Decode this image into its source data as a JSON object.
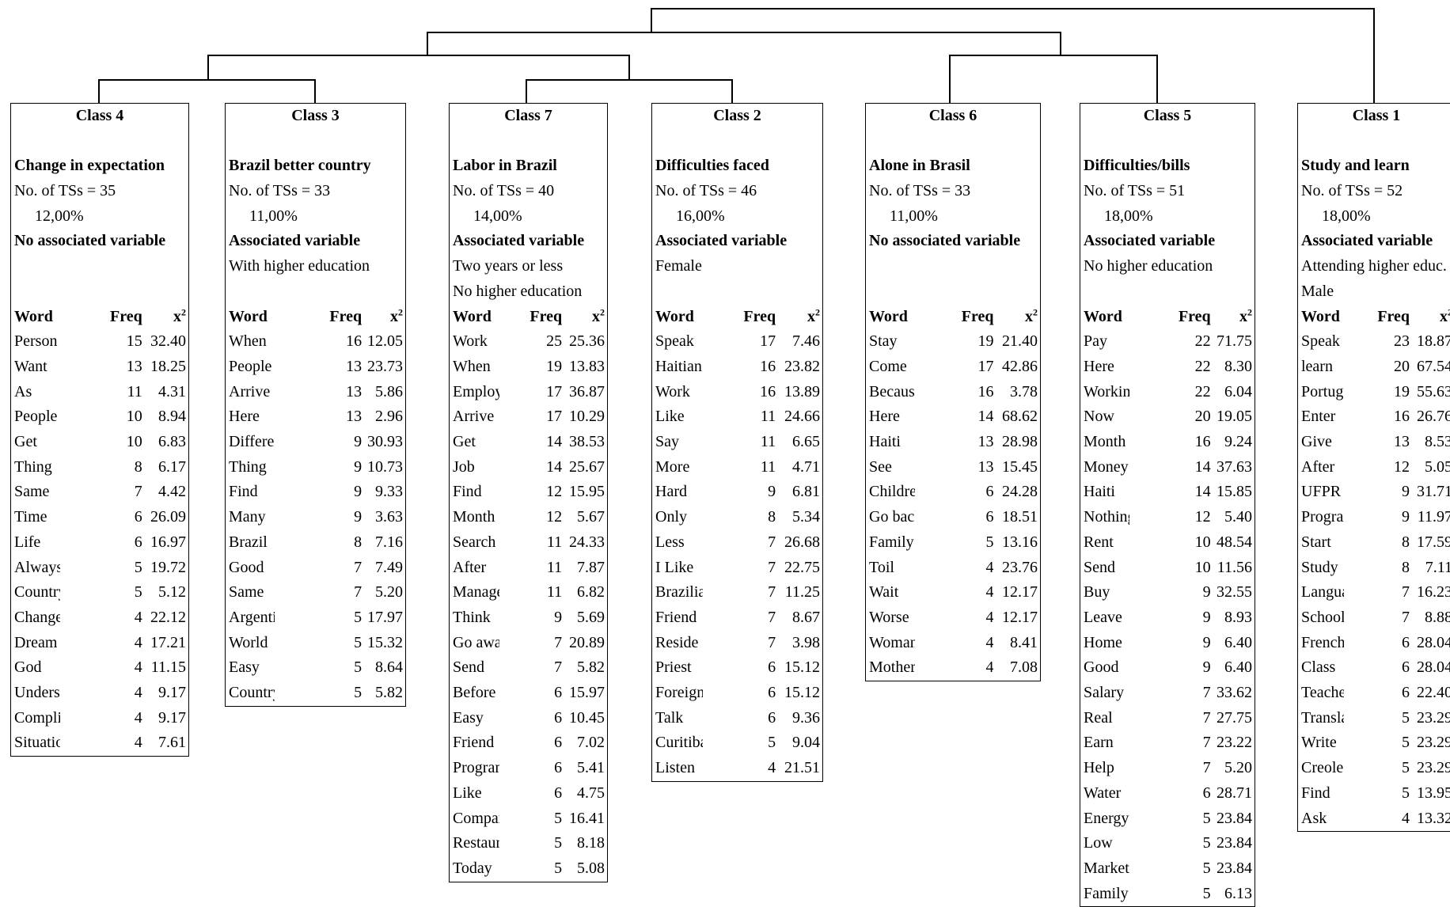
{
  "headers": {
    "word": "Word",
    "freq": "Freq",
    "chi": "x",
    "chi_sup": "2"
  },
  "classes": [
    {
      "id": "4",
      "title": "Class 4",
      "subtitle": "Change in expectation",
      "tss": "No. of TSs = 35",
      "pct": "12,00%",
      "assoc_label": "No associated variable",
      "assoc_values": [],
      "rows": [
        [
          "Person",
          "15",
          "32.40"
        ],
        [
          "Want",
          "13",
          "18.25"
        ],
        [
          "As",
          "11",
          "4.31"
        ],
        [
          "People",
          "10",
          "8.94"
        ],
        [
          "Get",
          "10",
          "6.83"
        ],
        [
          "Thing",
          "8",
          "6.17"
        ],
        [
          "Same",
          "7",
          "4.42"
        ],
        [
          "Time",
          "6",
          "26.09"
        ],
        [
          "Life",
          "6",
          "16.97"
        ],
        [
          "Always",
          "5",
          "19.72"
        ],
        [
          "Country",
          "5",
          "5.12"
        ],
        [
          "Change",
          "4",
          "22.12"
        ],
        [
          "Dream",
          "4",
          "17.21"
        ],
        [
          "God",
          "4",
          "11.15"
        ],
        [
          "Understand",
          "4",
          "9.17"
        ],
        [
          "Complicated",
          "4",
          "9.17"
        ],
        [
          "Situation",
          "4",
          "7.61"
        ]
      ]
    },
    {
      "id": "3",
      "title": "Class 3",
      "subtitle": "Brazil better country",
      "tss": "No. of TSs = 33",
      "pct": "11,00%",
      "assoc_label": "Associated variable",
      "assoc_values": [
        "With higher education"
      ],
      "rows": [
        [
          "When",
          "16",
          "12.05"
        ],
        [
          "People",
          "13",
          "23.73"
        ],
        [
          "Arrive",
          "13",
          "5.86"
        ],
        [
          "Here",
          "13",
          "2.96"
        ],
        [
          "Different",
          "9",
          "30.93"
        ],
        [
          "Thing",
          "9",
          "10.73"
        ],
        [
          "Find",
          "9",
          "9.33"
        ],
        [
          "Many",
          "9",
          "3.63"
        ],
        [
          "Brazil",
          "8",
          "7.16"
        ],
        [
          "Good",
          "7",
          "7.49"
        ],
        [
          "Same",
          "7",
          "5.20"
        ],
        [
          "Argentinian",
          "5",
          "17.97"
        ],
        [
          "World",
          "5",
          "15.32"
        ],
        [
          "Easy",
          "5",
          "8.64"
        ],
        [
          "Country",
          "5",
          "5.82"
        ]
      ]
    },
    {
      "id": "7",
      "title": "Class 7",
      "subtitle": "Labor in Brazil",
      "tss": "No. of TSs = 40",
      "pct": "14,00%",
      "assoc_label": "Associated variable",
      "assoc_values": [
        "Two years or less",
        "No higher education"
      ],
      "rows": [
        [
          "Work",
          "25",
          "25.36"
        ],
        [
          "When",
          "19",
          "13.83"
        ],
        [
          "Employme",
          "17",
          "36.87"
        ],
        [
          "Arrive",
          "17",
          "10.29"
        ],
        [
          "Get",
          "14",
          "38.53"
        ],
        [
          "Job",
          "14",
          "25.67"
        ],
        [
          "Find",
          "12",
          "15.95"
        ],
        [
          "Month",
          "12",
          "5.67"
        ],
        [
          "Search",
          "11",
          "24.33"
        ],
        [
          "After",
          "11",
          "7.87"
        ],
        [
          "Manage to",
          "11",
          "6.82"
        ],
        [
          "Think",
          "9",
          "5.69"
        ],
        [
          "Go away",
          "7",
          "20.89"
        ],
        [
          "Send",
          "7",
          "5.82"
        ],
        [
          "Before",
          "6",
          "15.97"
        ],
        [
          "Easy",
          "6",
          "10.45"
        ],
        [
          "Friend",
          "6",
          "7.02"
        ],
        [
          "Program",
          "6",
          "5.41"
        ],
        [
          "Like",
          "6",
          "4.75"
        ],
        [
          "Company",
          "5",
          "16.41"
        ],
        [
          "Restaurant",
          "5",
          "8.18"
        ],
        [
          "Today",
          "5",
          "5.08"
        ]
      ]
    },
    {
      "id": "2",
      "title": "Class 2",
      "subtitle": "Difficulties faced",
      "tss": "No. of TSs = 46",
      "pct": "16,00%",
      "assoc_label": "Associated variable",
      "assoc_values": [
        "Female"
      ],
      "rows": [
        [
          "Speak",
          "17",
          "7.46"
        ],
        [
          "Haitian",
          "16",
          "23.82"
        ],
        [
          "Work",
          "16",
          "13.89"
        ],
        [
          "Like",
          "11",
          "24.66"
        ],
        [
          "Say",
          "11",
          "6.65"
        ],
        [
          "More",
          "11",
          "4.71"
        ],
        [
          "Hard",
          "9",
          "6.81"
        ],
        [
          "Only",
          "8",
          "5.34"
        ],
        [
          "Less",
          "7",
          "26.68"
        ],
        [
          "I Like",
          "7",
          "22.75"
        ],
        [
          "Brazilian",
          "7",
          "11.25"
        ],
        [
          "Friend",
          "7",
          "8.67"
        ],
        [
          "Reside",
          "7",
          "3.98"
        ],
        [
          "Priest",
          "6",
          "15.12"
        ],
        [
          "Foreigner",
          "6",
          "15.12"
        ],
        [
          "Talk",
          "6",
          "9.36"
        ],
        [
          "Curitiba",
          "5",
          "9.04"
        ],
        [
          "Listen",
          "4",
          "21.51"
        ]
      ]
    },
    {
      "id": "6",
      "title": "Class 6",
      "subtitle": "Alone in Brasil",
      "tss": "No. of TSs = 33",
      "pct": "11,00%",
      "assoc_label": "No associated variable",
      "assoc_values": [],
      "rows": [
        [
          "Stay",
          "19",
          "21.40"
        ],
        [
          "Come",
          "17",
          "42.86"
        ],
        [
          "Because",
          "16",
          "3.78"
        ],
        [
          "Here",
          "14",
          "68.62"
        ],
        [
          "Haiti",
          "13",
          "28.98"
        ],
        [
          "See",
          "13",
          "15.45"
        ],
        [
          "Children",
          "6",
          "24.28"
        ],
        [
          "Go back",
          "6",
          "18.51"
        ],
        [
          "Family",
          "5",
          "13.16"
        ],
        [
          "Toil",
          "4",
          "23.76"
        ],
        [
          "Wait",
          "4",
          "12.17"
        ],
        [
          "Worse",
          "4",
          "12.17"
        ],
        [
          "Woman",
          "4",
          "8.41"
        ],
        [
          "Mother",
          "4",
          "7.08"
        ]
      ]
    },
    {
      "id": "5",
      "title": "Class 5",
      "subtitle": "Difficulties/bills",
      "tss": "No. of TSs = 51",
      "pct": "18,00%",
      "assoc_label": "Associated variable",
      "assoc_values": [
        "No higher education"
      ],
      "rows": [
        [
          "Pay",
          "22",
          "71.75"
        ],
        [
          "Here",
          "22",
          "8.30"
        ],
        [
          "Working",
          "22",
          "6.04"
        ],
        [
          "Now",
          "20",
          "19.05"
        ],
        [
          "Month",
          "16",
          "9.24"
        ],
        [
          "Money",
          "14",
          "37.63"
        ],
        [
          "Haiti",
          "14",
          "15.85"
        ],
        [
          "Nothing",
          "12",
          "5.40"
        ],
        [
          "Rent",
          "10",
          "48.54"
        ],
        [
          "Send",
          "10",
          "11.56"
        ],
        [
          "Buy",
          "9",
          "32.55"
        ],
        [
          "Leave",
          "9",
          "8.93"
        ],
        [
          "Home",
          "9",
          "6.40"
        ],
        [
          "Good",
          "9",
          "6.40"
        ],
        [
          "Salary",
          "7",
          "33.62"
        ],
        [
          "Real",
          "7",
          "27.75"
        ],
        [
          "Earn",
          "7",
          "23.22"
        ],
        [
          "Help",
          "7",
          "5.20"
        ],
        [
          "Water",
          "6",
          "28.71"
        ],
        [
          "Energy",
          "5",
          "23.84"
        ],
        [
          "Low",
          "5",
          "23.84"
        ],
        [
          "Market",
          "5",
          "23.84"
        ],
        [
          "Family",
          "5",
          "6.13"
        ]
      ]
    },
    {
      "id": "1",
      "title": "Class 1",
      "subtitle": "Study and learn",
      "tss": "No. of TSs = 52",
      "pct": "18,00%",
      "assoc_label": "Associated variable",
      "assoc_values": [
        "Attending higher educ.",
        "Male"
      ],
      "rows": [
        [
          "Speak",
          "23",
          "18.87"
        ],
        [
          "learn",
          "20",
          "67.54"
        ],
        [
          "Portuguese",
          "19",
          "55.63"
        ],
        [
          "Enter",
          "16",
          "26.76"
        ],
        [
          "Give",
          "13",
          "8.53"
        ],
        [
          "After",
          "12",
          "5.05"
        ],
        [
          "UFPR",
          "9",
          "31.71"
        ],
        [
          "Program",
          "9",
          "11.97"
        ],
        [
          "Start",
          "8",
          "17.59"
        ],
        [
          "Study",
          "8",
          "7.11"
        ],
        [
          "Language",
          "7",
          "16.23"
        ],
        [
          "School",
          "7",
          "8.88"
        ],
        [
          "French",
          "6",
          "28.04"
        ],
        [
          "Class",
          "6",
          "28.04"
        ],
        [
          "Teacher",
          "6",
          "22.40"
        ],
        [
          "Translate",
          "5",
          "23.29"
        ],
        [
          "Write",
          "5",
          "23.29"
        ],
        [
          "Creole",
          "5",
          "23.29"
        ],
        [
          "Find",
          "5",
          "13.95"
        ],
        [
          "Ask",
          "4",
          "13.32"
        ]
      ]
    }
  ]
}
